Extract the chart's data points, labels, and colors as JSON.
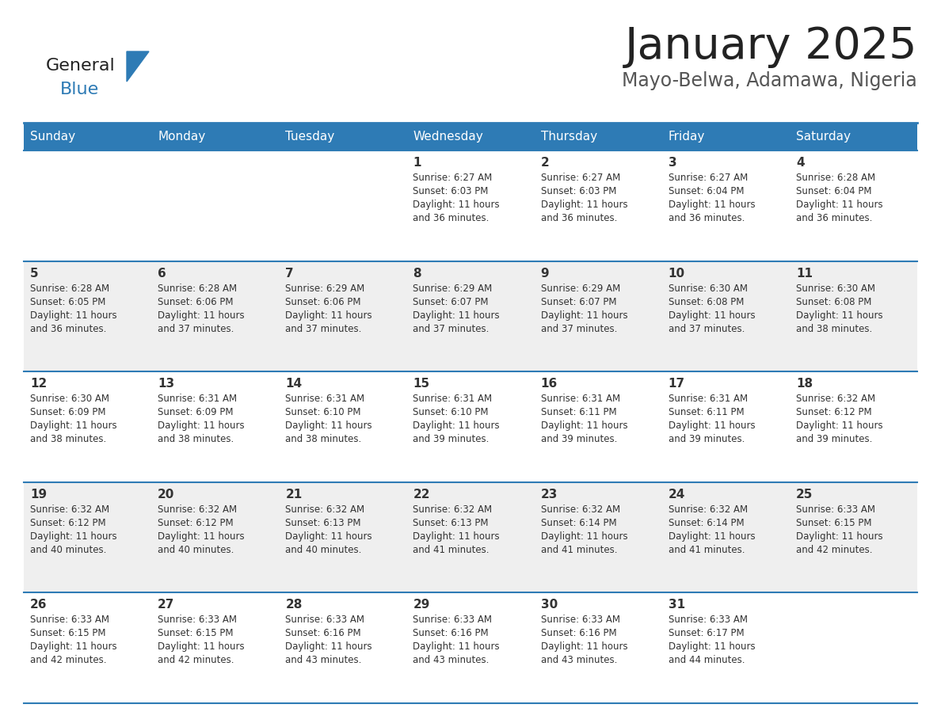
{
  "title": "January 2025",
  "subtitle": "Mayo-Belwa, Adamawa, Nigeria",
  "header_bg": "#2E7BB5",
  "header_text": "#FFFFFF",
  "row_bg_even": "#EFEFEF",
  "row_bg_odd": "#FFFFFF",
  "border_color": "#2E7BB5",
  "day_headers": [
    "Sunday",
    "Monday",
    "Tuesday",
    "Wednesday",
    "Thursday",
    "Friday",
    "Saturday"
  ],
  "title_color": "#222222",
  "subtitle_color": "#555555",
  "cell_text_color": "#333333",
  "day_num_color": "#333333",
  "logo_general_color": "#222222",
  "logo_blue_color": "#2E7BB5",
  "logo_triangle_color": "#2E7BB5",
  "calendar_data": [
    [
      {
        "day": "",
        "sunrise": "",
        "sunset": "",
        "daylight": ""
      },
      {
        "day": "",
        "sunrise": "",
        "sunset": "",
        "daylight": ""
      },
      {
        "day": "",
        "sunrise": "",
        "sunset": "",
        "daylight": ""
      },
      {
        "day": "1",
        "sunrise": "6:27 AM",
        "sunset": "6:03 PM",
        "daylight": "11 hours and 36 minutes."
      },
      {
        "day": "2",
        "sunrise": "6:27 AM",
        "sunset": "6:03 PM",
        "daylight": "11 hours and 36 minutes."
      },
      {
        "day": "3",
        "sunrise": "6:27 AM",
        "sunset": "6:04 PM",
        "daylight": "11 hours and 36 minutes."
      },
      {
        "day": "4",
        "sunrise": "6:28 AM",
        "sunset": "6:04 PM",
        "daylight": "11 hours and 36 minutes."
      }
    ],
    [
      {
        "day": "5",
        "sunrise": "6:28 AM",
        "sunset": "6:05 PM",
        "daylight": "11 hours and 36 minutes."
      },
      {
        "day": "6",
        "sunrise": "6:28 AM",
        "sunset": "6:06 PM",
        "daylight": "11 hours and 37 minutes."
      },
      {
        "day": "7",
        "sunrise": "6:29 AM",
        "sunset": "6:06 PM",
        "daylight": "11 hours and 37 minutes."
      },
      {
        "day": "8",
        "sunrise": "6:29 AM",
        "sunset": "6:07 PM",
        "daylight": "11 hours and 37 minutes."
      },
      {
        "day": "9",
        "sunrise": "6:29 AM",
        "sunset": "6:07 PM",
        "daylight": "11 hours and 37 minutes."
      },
      {
        "day": "10",
        "sunrise": "6:30 AM",
        "sunset": "6:08 PM",
        "daylight": "11 hours and 37 minutes."
      },
      {
        "day": "11",
        "sunrise": "6:30 AM",
        "sunset": "6:08 PM",
        "daylight": "11 hours and 38 minutes."
      }
    ],
    [
      {
        "day": "12",
        "sunrise": "6:30 AM",
        "sunset": "6:09 PM",
        "daylight": "11 hours and 38 minutes."
      },
      {
        "day": "13",
        "sunrise": "6:31 AM",
        "sunset": "6:09 PM",
        "daylight": "11 hours and 38 minutes."
      },
      {
        "day": "14",
        "sunrise": "6:31 AM",
        "sunset": "6:10 PM",
        "daylight": "11 hours and 38 minutes."
      },
      {
        "day": "15",
        "sunrise": "6:31 AM",
        "sunset": "6:10 PM",
        "daylight": "11 hours and 39 minutes."
      },
      {
        "day": "16",
        "sunrise": "6:31 AM",
        "sunset": "6:11 PM",
        "daylight": "11 hours and 39 minutes."
      },
      {
        "day": "17",
        "sunrise": "6:31 AM",
        "sunset": "6:11 PM",
        "daylight": "11 hours and 39 minutes."
      },
      {
        "day": "18",
        "sunrise": "6:32 AM",
        "sunset": "6:12 PM",
        "daylight": "11 hours and 39 minutes."
      }
    ],
    [
      {
        "day": "19",
        "sunrise": "6:32 AM",
        "sunset": "6:12 PM",
        "daylight": "11 hours and 40 minutes."
      },
      {
        "day": "20",
        "sunrise": "6:32 AM",
        "sunset": "6:12 PM",
        "daylight": "11 hours and 40 minutes."
      },
      {
        "day": "21",
        "sunrise": "6:32 AM",
        "sunset": "6:13 PM",
        "daylight": "11 hours and 40 minutes."
      },
      {
        "day": "22",
        "sunrise": "6:32 AM",
        "sunset": "6:13 PM",
        "daylight": "11 hours and 41 minutes."
      },
      {
        "day": "23",
        "sunrise": "6:32 AM",
        "sunset": "6:14 PM",
        "daylight": "11 hours and 41 minutes."
      },
      {
        "day": "24",
        "sunrise": "6:32 AM",
        "sunset": "6:14 PM",
        "daylight": "11 hours and 41 minutes."
      },
      {
        "day": "25",
        "sunrise": "6:33 AM",
        "sunset": "6:15 PM",
        "daylight": "11 hours and 42 minutes."
      }
    ],
    [
      {
        "day": "26",
        "sunrise": "6:33 AM",
        "sunset": "6:15 PM",
        "daylight": "11 hours and 42 minutes."
      },
      {
        "day": "27",
        "sunrise": "6:33 AM",
        "sunset": "6:15 PM",
        "daylight": "11 hours and 42 minutes."
      },
      {
        "day": "28",
        "sunrise": "6:33 AM",
        "sunset": "6:16 PM",
        "daylight": "11 hours and 43 minutes."
      },
      {
        "day": "29",
        "sunrise": "6:33 AM",
        "sunset": "6:16 PM",
        "daylight": "11 hours and 43 minutes."
      },
      {
        "day": "30",
        "sunrise": "6:33 AM",
        "sunset": "6:16 PM",
        "daylight": "11 hours and 43 minutes."
      },
      {
        "day": "31",
        "sunrise": "6:33 AM",
        "sunset": "6:17 PM",
        "daylight": "11 hours and 44 minutes."
      },
      {
        "day": "",
        "sunrise": "",
        "sunset": "",
        "daylight": ""
      }
    ]
  ]
}
